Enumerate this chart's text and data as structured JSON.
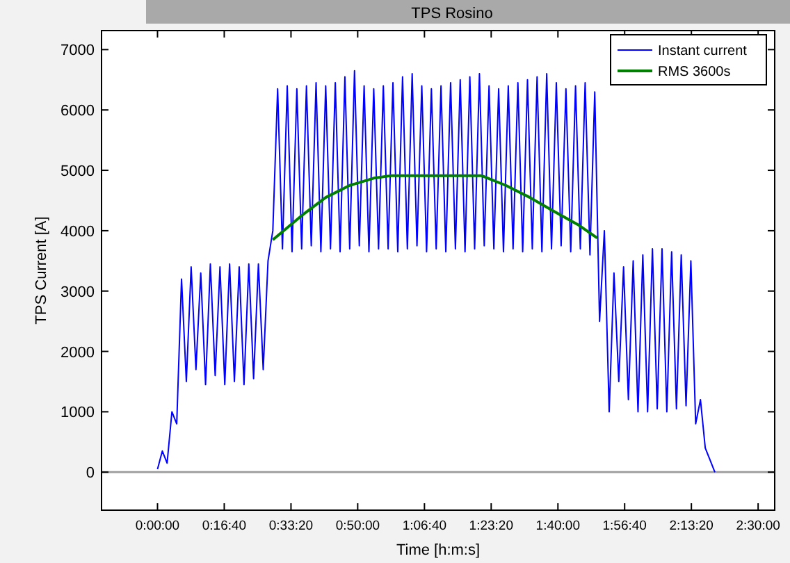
{
  "chart_data": {
    "type": "line",
    "title": "TPS Rosino",
    "xlabel": "Time [h:m:s]",
    "ylabel": "TPS Current [A]",
    "x": [
      0,
      0.02,
      0.04,
      0.06,
      0.08,
      0.1,
      0.12,
      0.14,
      0.16,
      0.18,
      0.2,
      0.22,
      0.24,
      0.26,
      0.28,
      0.3,
      0.32,
      0.34,
      0.36,
      0.38,
      0.4,
      0.42,
      0.44,
      0.46,
      0.48,
      0.5,
      0.52,
      0.54,
      0.56,
      0.58,
      0.6,
      0.62,
      0.64,
      0.66,
      0.68,
      0.7,
      0.72,
      0.74,
      0.76,
      0.78,
      0.8,
      0.82,
      0.84,
      0.86,
      0.88,
      0.9,
      0.92,
      0.94,
      0.96,
      0.98,
      1,
      1.02,
      1.04,
      1.06,
      1.08,
      1.1,
      1.12,
      1.14,
      1.16,
      1.18,
      1.2,
      1.22,
      1.24,
      1.26,
      1.28,
      1.3,
      1.32,
      1.34,
      1.36,
      1.38,
      1.4,
      1.42,
      1.44,
      1.46,
      1.48,
      1.5,
      1.52,
      1.54,
      1.56,
      1.58,
      1.6,
      1.62,
      1.64,
      1.66,
      1.68,
      1.7,
      1.72,
      1.74,
      1.76,
      1.78,
      1.8,
      1.82,
      1.84,
      1.86,
      1.88,
      1.9,
      1.92,
      1.94,
      1.96,
      1.98,
      2,
      2.02,
      2.04,
      2.06,
      2.08,
      2.1,
      2.12,
      2.14,
      2.16,
      2.18,
      2.2,
      2.22,
      2.24,
      2.26,
      2.28,
      2.3,
      2.32
    ],
    "series": [
      {
        "name": "Instant current",
        "color": "#0000ff",
        "values": [
          50,
          350,
          150,
          1000,
          800,
          3200,
          1500,
          3400,
          1700,
          3300,
          1450,
          3450,
          1600,
          3400,
          1450,
          3450,
          1500,
          3400,
          1450,
          3450,
          1550,
          3450,
          1700,
          3500,
          4000,
          6350,
          3700,
          6400,
          3650,
          6350,
          3700,
          6400,
          3750,
          6450,
          3650,
          6400,
          3700,
          6450,
          3650,
          6550,
          3700,
          6650,
          3750,
          6400,
          3650,
          6350,
          3700,
          6400,
          3700,
          6450,
          3650,
          6550,
          3700,
          6600,
          3750,
          6400,
          3650,
          6350,
          3700,
          6400,
          3650,
          6450,
          3700,
          6500,
          3650,
          6550,
          3700,
          6600,
          3750,
          6400,
          3700,
          6350,
          3650,
          6400,
          3700,
          6450,
          3650,
          6500,
          3700,
          6550,
          3650,
          6600,
          3700,
          6450,
          3750,
          6350,
          3650,
          6400,
          3700,
          6450,
          3600,
          6300,
          2500,
          4000,
          1000,
          3300,
          1500,
          3400,
          1200,
          3500,
          1000,
          3600,
          1000,
          3700,
          1050,
          3700,
          1000,
          3650,
          1050,
          3600,
          1100,
          3500,
          800,
          1200,
          400,
          200,
          0
        ]
      },
      {
        "name": "RMS 3600s",
        "color": "#008000",
        "x": [
          0.48,
          0.6,
          0.7,
          0.8,
          0.9,
          0.97,
          1.35,
          1.45,
          1.55,
          1.65,
          1.75,
          1.83
        ],
        "values": [
          3850,
          4250,
          4550,
          4750,
          4870,
          4910,
          4910,
          4750,
          4550,
          4320,
          4100,
          3880
        ]
      }
    ],
    "xlim": [
      -0.233,
      2.569
    ],
    "xticks": [
      {
        "value": 0,
        "label": "0:00:00"
      },
      {
        "value": 0.2778,
        "label": "0:16:40"
      },
      {
        "value": 0.5556,
        "label": "0:33:20"
      },
      {
        "value": 0.8333,
        "label": "0:50:00"
      },
      {
        "value": 1.1111,
        "label": "1:06:40"
      },
      {
        "value": 1.3889,
        "label": "1:23:20"
      },
      {
        "value": 1.6667,
        "label": "1:40:00"
      },
      {
        "value": 1.9444,
        "label": "1:56:40"
      },
      {
        "value": 2.2222,
        "label": "2:13:20"
      },
      {
        "value": 2.5,
        "label": "2:30:00"
      }
    ],
    "ylim": [
      -630,
      7315
    ],
    "yticks": [
      0,
      1000,
      2000,
      3000,
      4000,
      5000,
      6000,
      7000
    ],
    "ref_lines": [
      {
        "axis": "y",
        "value": 0,
        "color": "#a0a0a0"
      }
    ],
    "legend": "top right",
    "grid": false,
    "line_style": "solid",
    "marker": "none"
  }
}
